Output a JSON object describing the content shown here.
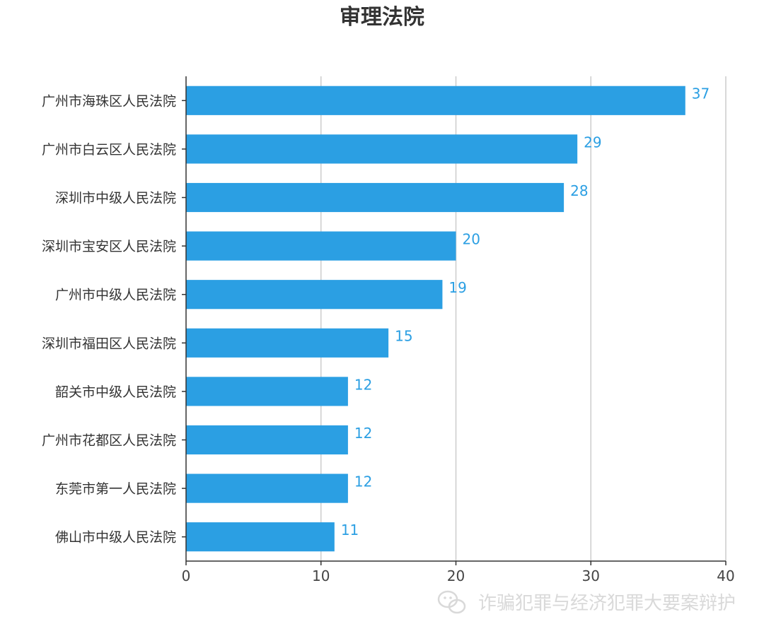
{
  "chart_data": {
    "type": "bar",
    "orientation": "horizontal",
    "title": "审理法院",
    "categories": [
      "广州市海珠区人民法院",
      "广州市白云区人民法院",
      "深圳市中级人民法院",
      "深圳市宝安区人民法院",
      "广州市中级人民法院",
      "深圳市福田区人民法院",
      "韶关市中级人民法院",
      "广州市花都区人民法院",
      "东莞市第一人民法院",
      "佛山市中级人民法院"
    ],
    "values": [
      37,
      29,
      28,
      20,
      19,
      15,
      12,
      12,
      12,
      11
    ],
    "xlim": [
      0,
      40
    ],
    "xticks": [
      0,
      10,
      20,
      30,
      40
    ],
    "grid": true,
    "bar_color": "#2b9fe3",
    "label_color": "#2b9fe3",
    "xlabel": "",
    "ylabel": ""
  },
  "watermark": {
    "text": "诈骗犯罪与经济犯罪大要案辩护",
    "icon": "wechat-icon"
  }
}
